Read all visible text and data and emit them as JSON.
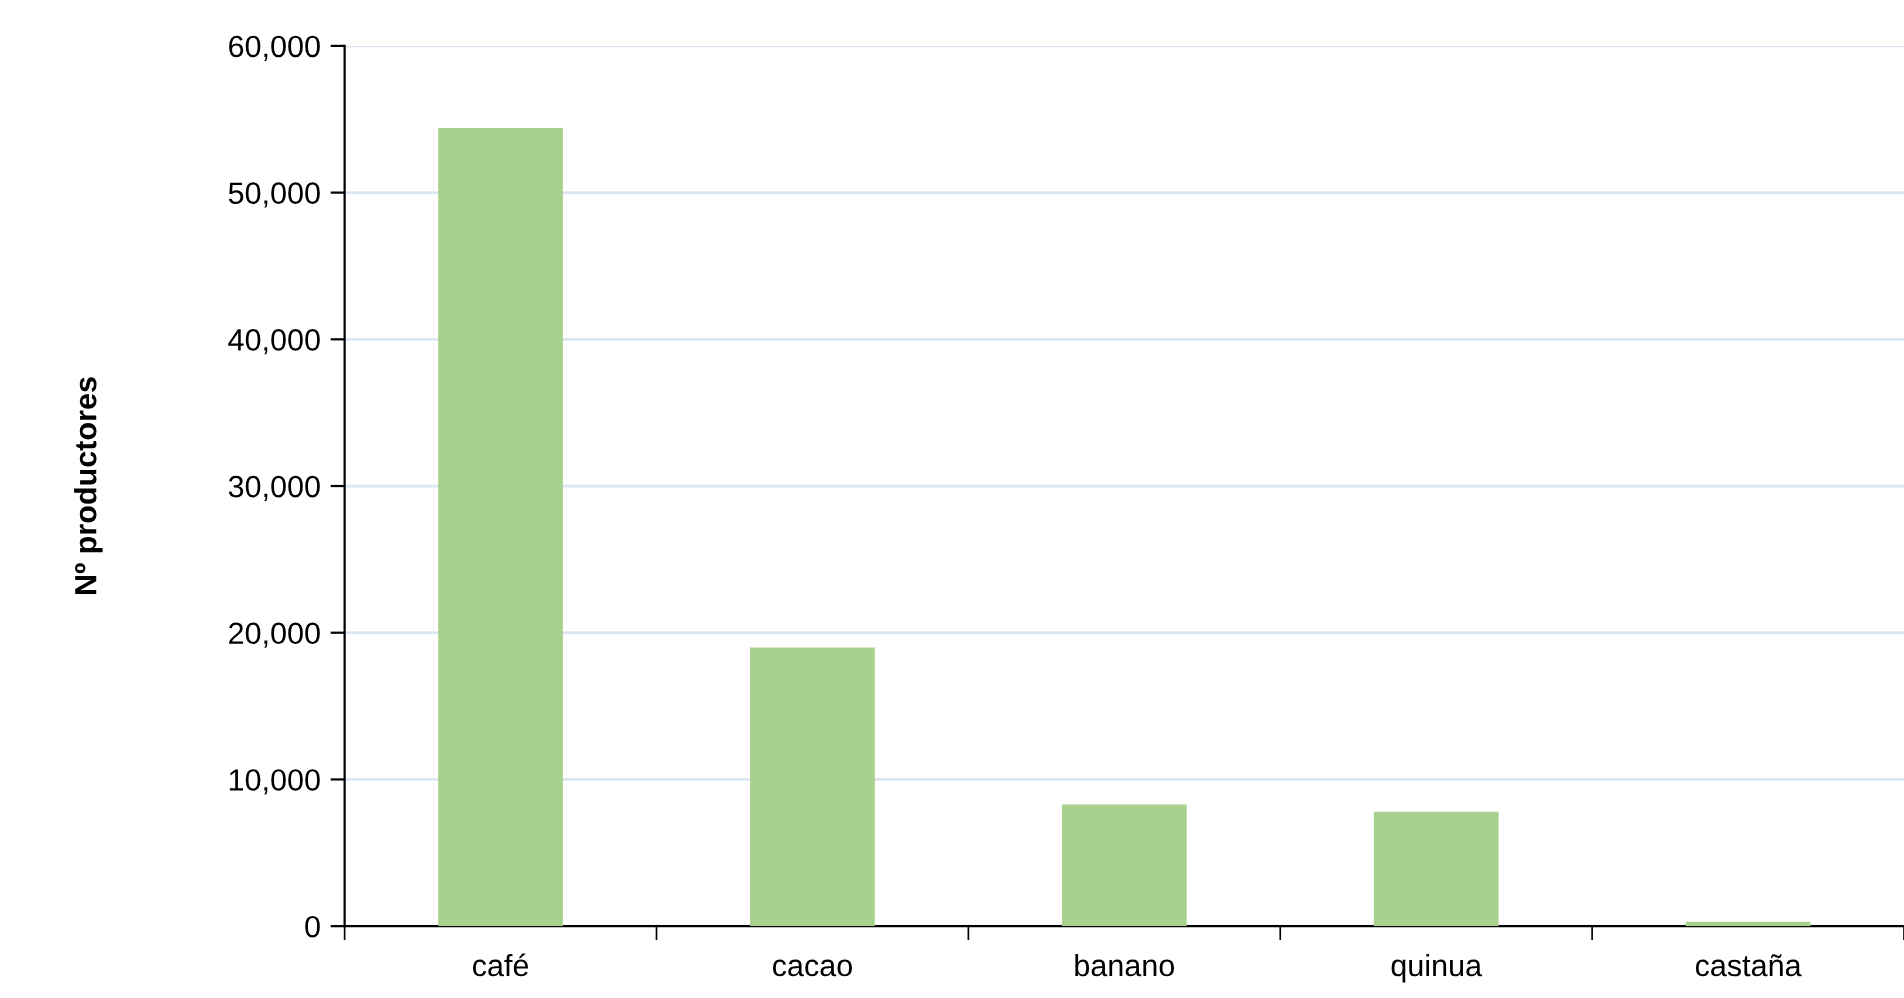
{
  "chart_data": {
    "type": "bar",
    "ylabel": "Nº productores",
    "categories": [
      "café",
      "cacao",
      "banano",
      "quinua",
      "castaña"
    ],
    "values": [
      54400,
      19000,
      8300,
      7800,
      300
    ],
    "color": "#a9d18e",
    "ylim": [
      0,
      60000
    ],
    "yticks": [
      {
        "value": 0,
        "label": "0"
      },
      {
        "value": 10000,
        "label": "10,000"
      },
      {
        "value": 20000,
        "label": "20,000"
      },
      {
        "value": 30000,
        "label": "30,000"
      },
      {
        "value": 40000,
        "label": "40,000"
      },
      {
        "value": 50000,
        "label": "50,000"
      },
      {
        "value": 60000,
        "label": "60,000"
      }
    ],
    "grid": "y"
  }
}
